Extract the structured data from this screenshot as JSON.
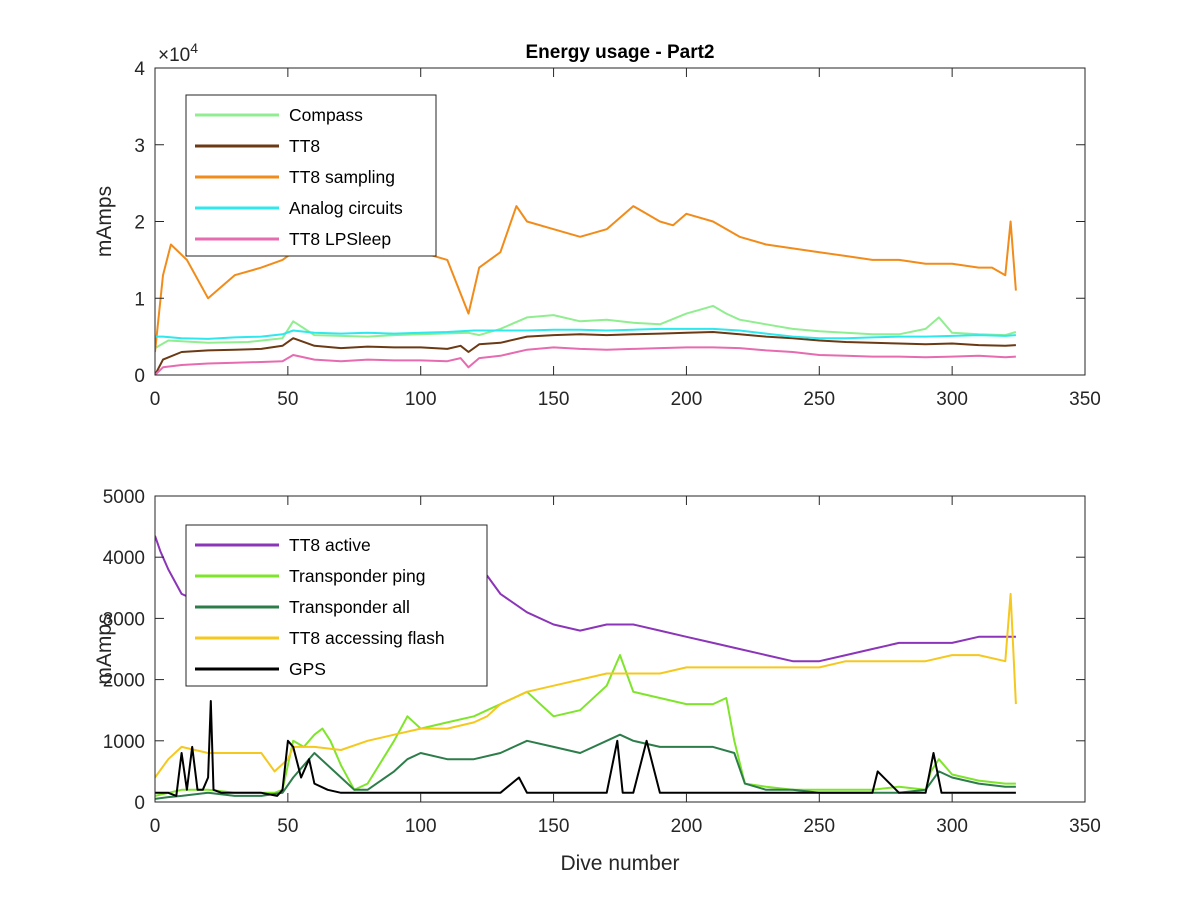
{
  "chart_data": [
    {
      "type": "line",
      "title": "Energy usage - Part2",
      "xlabel": "",
      "ylabel": "mAmps",
      "exponent_label": "×10",
      "exponent_power": "4",
      "xlim": [
        0,
        350
      ],
      "ylim": [
        0,
        40000
      ],
      "xticks": [
        0,
        50,
        100,
        150,
        200,
        250,
        300,
        350
      ],
      "yticks": [
        0,
        10000,
        20000,
        30000,
        40000
      ],
      "yticklabels": [
        "0",
        "1",
        "2",
        "3",
        "4"
      ],
      "grid": false,
      "legend_position": "top-left",
      "series": [
        {
          "name": "Compass",
          "color": "#90ee90",
          "x": [
            0,
            5,
            20,
            35,
            48,
            52,
            60,
            80,
            90,
            100,
            118,
            122,
            130,
            140,
            150,
            160,
            170,
            180,
            190,
            200,
            205,
            210,
            215,
            220,
            230,
            240,
            250,
            260,
            270,
            280,
            290,
            295,
            300,
            310,
            320,
            324
          ],
          "y": [
            3500,
            4500,
            4200,
            4300,
            4800,
            7000,
            5200,
            5000,
            5200,
            5300,
            5500,
            5200,
            6000,
            7500,
            7800,
            7000,
            7200,
            6800,
            6600,
            8000,
            8500,
            9000,
            8000,
            7200,
            6600,
            6000,
            5700,
            5500,
            5300,
            5300,
            6000,
            7500,
            5500,
            5300,
            5200,
            5600
          ]
        },
        {
          "name": "TT8",
          "color": "#6b3a14",
          "x": [
            0,
            3,
            10,
            20,
            30,
            40,
            48,
            52,
            60,
            70,
            80,
            90,
            100,
            110,
            115,
            118,
            122,
            130,
            140,
            150,
            160,
            170,
            180,
            190,
            200,
            210,
            220,
            230,
            240,
            250,
            260,
            270,
            280,
            290,
            300,
            310,
            320,
            324
          ],
          "y": [
            0,
            2000,
            3000,
            3200,
            3300,
            3400,
            3800,
            4800,
            3800,
            3500,
            3700,
            3600,
            3600,
            3400,
            3800,
            3000,
            4000,
            4200,
            5000,
            5200,
            5300,
            5200,
            5300,
            5400,
            5500,
            5600,
            5300,
            5000,
            4800,
            4500,
            4300,
            4200,
            4100,
            4000,
            4100,
            3900,
            3800,
            3900
          ]
        },
        {
          "name": "TT8 sampling",
          "color": "#f18c1a",
          "x": [
            0,
            3,
            6,
            12,
            20,
            30,
            40,
            48,
            52,
            60,
            70,
            80,
            90,
            100,
            110,
            118,
            122,
            130,
            136,
            140,
            150,
            160,
            170,
            180,
            185,
            190,
            195,
            200,
            210,
            220,
            230,
            240,
            250,
            260,
            270,
            280,
            290,
            300,
            310,
            315,
            320,
            322,
            324
          ],
          "y": [
            3000,
            13000,
            17000,
            15000,
            10000,
            13000,
            14000,
            15000,
            16000,
            17000,
            16000,
            17000,
            17000,
            16000,
            15000,
            8000,
            14000,
            16000,
            22000,
            20000,
            19000,
            18000,
            19000,
            22000,
            21000,
            20000,
            19500,
            21000,
            20000,
            18000,
            17000,
            16500,
            16000,
            15500,
            15000,
            15000,
            14500,
            14500,
            14000,
            14000,
            13000,
            20000,
            11000
          ]
        },
        {
          "name": "Analog circuits",
          "color": "#2ee8ee",
          "x": [
            0,
            3,
            10,
            20,
            30,
            40,
            48,
            52,
            60,
            70,
            80,
            90,
            100,
            110,
            120,
            130,
            140,
            150,
            160,
            170,
            180,
            190,
            200,
            210,
            220,
            230,
            240,
            250,
            260,
            270,
            280,
            290,
            300,
            310,
            320,
            324
          ],
          "y": [
            5000,
            5000,
            4800,
            4700,
            4900,
            5000,
            5300,
            5800,
            5500,
            5400,
            5500,
            5400,
            5500,
            5600,
            5800,
            5800,
            5800,
            5900,
            5900,
            5800,
            5900,
            6000,
            6000,
            6000,
            5800,
            5400,
            5000,
            4800,
            4800,
            4900,
            5000,
            5000,
            5100,
            5200,
            5100,
            5200
          ]
        },
        {
          "name": "TT8 LPSleep",
          "color": "#e66bb0",
          "x": [
            0,
            3,
            10,
            20,
            30,
            40,
            48,
            52,
            60,
            70,
            80,
            90,
            100,
            110,
            115,
            118,
            122,
            130,
            140,
            150,
            160,
            170,
            180,
            190,
            200,
            210,
            220,
            230,
            240,
            250,
            260,
            270,
            280,
            290,
            300,
            310,
            320,
            324
          ],
          "y": [
            0,
            1000,
            1300,
            1500,
            1600,
            1700,
            1800,
            2600,
            2000,
            1800,
            2000,
            1900,
            1900,
            1800,
            2200,
            1000,
            2200,
            2500,
            3300,
            3600,
            3400,
            3300,
            3400,
            3500,
            3600,
            3600,
            3500,
            3200,
            3000,
            2600,
            2500,
            2400,
            2400,
            2300,
            2400,
            2500,
            2300,
            2400
          ]
        }
      ]
    },
    {
      "type": "line",
      "title": "",
      "xlabel": "Dive number",
      "ylabel": "mAmps",
      "xlim": [
        0,
        350
      ],
      "ylim": [
        0,
        5000
      ],
      "xticks": [
        0,
        50,
        100,
        150,
        200,
        250,
        300,
        350
      ],
      "yticks": [
        0,
        1000,
        2000,
        3000,
        4000,
        5000
      ],
      "grid": false,
      "legend_position": "top-left",
      "series": [
        {
          "name": "TT8 active",
          "color": "#8b35b8",
          "x": [
            0,
            2,
            5,
            10,
            15,
            20,
            120,
            125,
            130,
            140,
            150,
            160,
            170,
            180,
            190,
            200,
            210,
            220,
            230,
            240,
            250,
            260,
            270,
            280,
            290,
            300,
            310,
            320,
            324
          ],
          "y": [
            4350,
            4100,
            3800,
            3400,
            3300,
            3200,
            3800,
            3700,
            3400,
            3100,
            2900,
            2800,
            2900,
            2900,
            2800,
            2700,
            2600,
            2500,
            2400,
            2300,
            2300,
            2400,
            2500,
            2600,
            2600,
            2600,
            2700,
            2700,
            2700
          ]
        },
        {
          "name": "Transponder ping",
          "color": "#7fe52b",
          "x": [
            0,
            5,
            10,
            20,
            30,
            40,
            45,
            48,
            52,
            56,
            60,
            63,
            66,
            70,
            75,
            80,
            90,
            95,
            100,
            110,
            120,
            125,
            130,
            135,
            140,
            145,
            150,
            160,
            170,
            175,
            180,
            190,
            200,
            210,
            215,
            218,
            222,
            230,
            240,
            250,
            260,
            270,
            280,
            290,
            292,
            295,
            300,
            310,
            320,
            324
          ],
          "y": [
            100,
            150,
            200,
            200,
            150,
            150,
            150,
            200,
            1000,
            900,
            1100,
            1200,
            1000,
            600,
            200,
            300,
            1000,
            1400,
            1200,
            1300,
            1400,
            1500,
            1600,
            1700,
            1800,
            1600,
            1400,
            1500,
            1900,
            2400,
            1800,
            1700,
            1600,
            1600,
            1700,
            1000,
            300,
            250,
            200,
            200,
            200,
            200,
            250,
            200,
            500,
            700,
            450,
            350,
            300,
            300
          ]
        },
        {
          "name": "Transponder all",
          "color": "#2d7d4a",
          "x": [
            0,
            5,
            10,
            20,
            30,
            40,
            48,
            52,
            60,
            70,
            75,
            80,
            90,
            95,
            100,
            110,
            120,
            130,
            135,
            140,
            150,
            160,
            170,
            175,
            180,
            190,
            200,
            210,
            218,
            222,
            230,
            240,
            250,
            260,
            270,
            280,
            290,
            295,
            300,
            310,
            320,
            324
          ],
          "y": [
            50,
            80,
            100,
            150,
            100,
            100,
            150,
            400,
            800,
            400,
            200,
            200,
            500,
            700,
            800,
            700,
            700,
            800,
            900,
            1000,
            900,
            800,
            1000,
            1100,
            1000,
            900,
            900,
            900,
            800,
            300,
            200,
            200,
            150,
            150,
            150,
            150,
            200,
            500,
            400,
            300,
            250,
            250
          ]
        },
        {
          "name": "TT8 accessing flash",
          "color": "#f5c81e",
          "x": [
            0,
            5,
            10,
            20,
            30,
            40,
            45,
            50,
            52,
            60,
            70,
            80,
            90,
            100,
            110,
            120,
            125,
            130,
            140,
            150,
            160,
            170,
            180,
            190,
            200,
            210,
            220,
            230,
            240,
            250,
            260,
            270,
            280,
            290,
            300,
            310,
            320,
            322,
            324
          ],
          "y": [
            400,
            700,
            900,
            800,
            800,
            800,
            500,
            700,
            900,
            900,
            850,
            1000,
            1100,
            1200,
            1200,
            1300,
            1400,
            1600,
            1800,
            1900,
            2000,
            2100,
            2100,
            2100,
            2200,
            2200,
            2200,
            2200,
            2200,
            2200,
            2300,
            2300,
            2300,
            2300,
            2400,
            2400,
            2300,
            3400,
            1600
          ]
        },
        {
          "name": "GPS",
          "color": "#000000",
          "x": [
            0,
            5,
            8,
            10,
            12,
            14,
            16,
            18,
            20,
            21,
            22,
            25,
            30,
            40,
            46,
            48,
            50,
            52,
            55,
            58,
            60,
            65,
            70,
            80,
            90,
            100,
            110,
            120,
            130,
            137,
            140,
            150,
            160,
            170,
            174,
            176,
            180,
            185,
            190,
            200,
            210,
            220,
            230,
            240,
            250,
            260,
            270,
            272,
            280,
            290,
            293,
            296,
            300,
            310,
            320,
            324
          ],
          "y": [
            150,
            150,
            100,
            800,
            200,
            900,
            200,
            200,
            400,
            1650,
            200,
            150,
            150,
            150,
            100,
            200,
            1000,
            900,
            400,
            700,
            300,
            200,
            150,
            150,
            150,
            150,
            150,
            150,
            150,
            400,
            150,
            150,
            150,
            150,
            1000,
            150,
            150,
            1000,
            150,
            150,
            150,
            150,
            150,
            150,
            150,
            150,
            150,
            500,
            150,
            150,
            800,
            150,
            150,
            150,
            150,
            150
          ]
        }
      ]
    }
  ]
}
